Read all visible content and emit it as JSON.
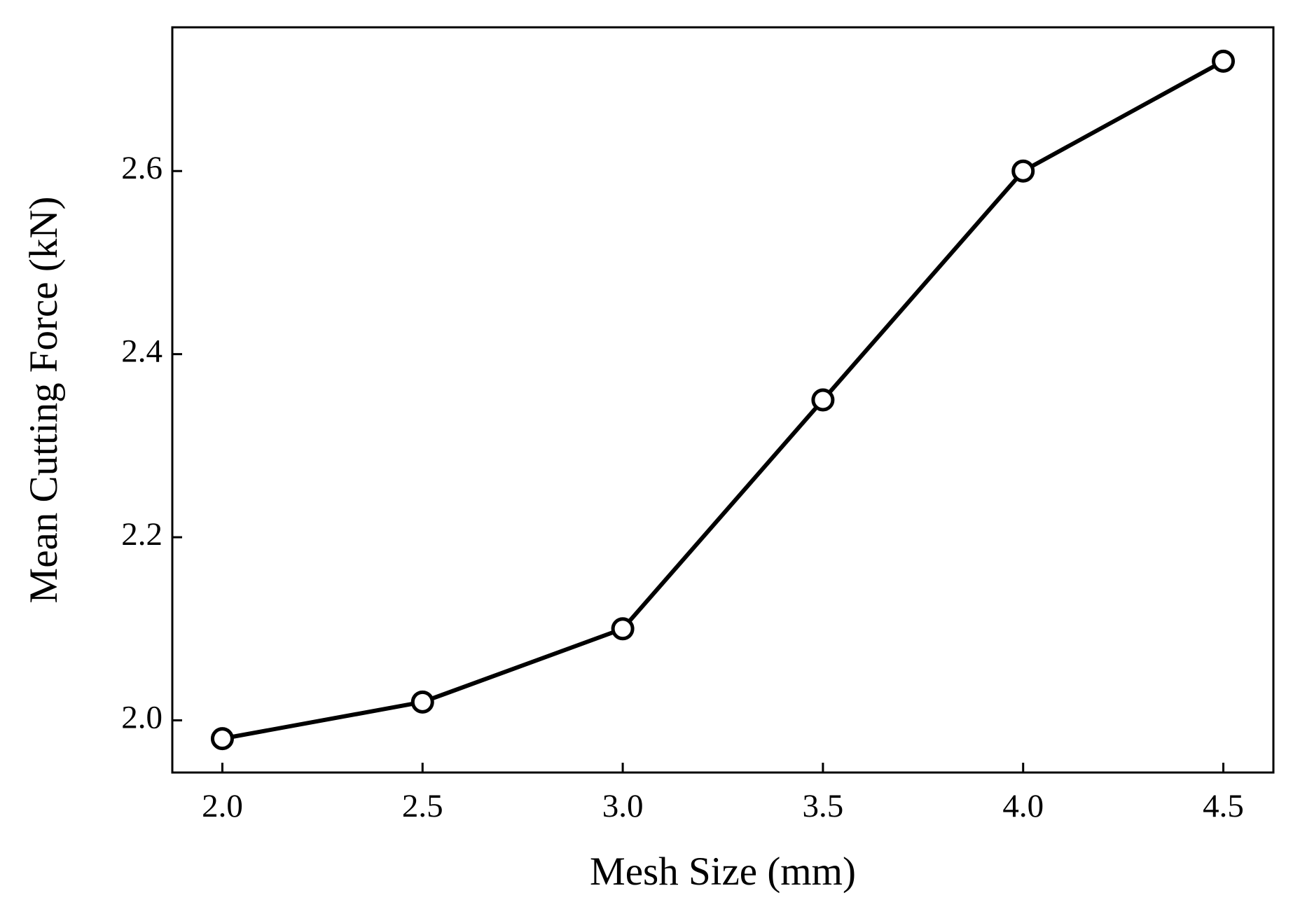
{
  "chart_data": {
    "type": "line",
    "x_label": "Mesh Size (mm)",
    "y_label": "Mean Cutting Force (kN)",
    "x": [
      2.0,
      2.5,
      3.0,
      3.5,
      4.0,
      4.5
    ],
    "series": [
      {
        "name": "Mean Cutting Force",
        "color": "#000000",
        "values": [
          1.98,
          2.02,
          2.1,
          2.35,
          2.6,
          2.72
        ]
      }
    ],
    "xlim": [
      1.875,
      4.625
    ],
    "xticks": [
      {
        "value": 2.0,
        "label": "2.0"
      },
      2.5,
      {
        "value": 3.0,
        "label": "3.0"
      },
      3.5,
      {
        "value": 4.0,
        "label": "4.0"
      },
      4.5
    ],
    "ylim": [
      1.943,
      2.757
    ],
    "yticks": [
      {
        "value": 2.0,
        "label": "2.0"
      },
      2.2,
      2.4,
      2.6
    ],
    "grid": false
  }
}
